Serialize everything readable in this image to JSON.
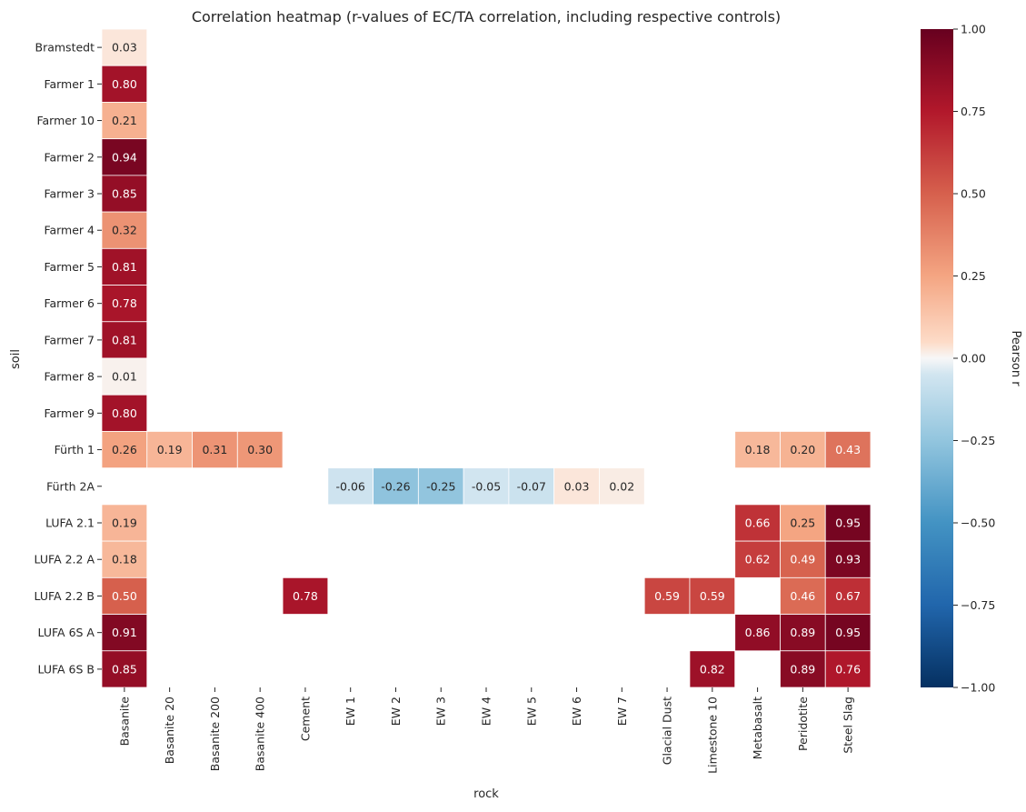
{
  "chart_data": {
    "type": "heatmap",
    "title": "Correlation heatmap (r-values of EC/TA correlation, including respective controls)",
    "xlabel": "rock",
    "ylabel": "soil",
    "colorbar_label": "Pearson r",
    "colormap": "RdBu_r",
    "vlim": [
      -1.0,
      1.0
    ],
    "colorbar_ticks": [
      "1.00",
      "0.75",
      "0.50",
      "0.25",
      "0.00",
      "−0.25",
      "−0.50",
      "−0.75",
      "−1.00"
    ],
    "colorbar_tick_values": [
      1.0,
      0.75,
      0.5,
      0.25,
      0.0,
      -0.25,
      -0.5,
      -0.75,
      -1.0
    ],
    "columns": [
      "Basanite",
      "Basanite 20",
      "Basanite 200",
      "Basanite 400",
      "Cement",
      "EW 1",
      "EW 2",
      "EW 3",
      "EW 4",
      "EW 5",
      "EW 6",
      "EW 7",
      "Glacial Dust",
      "Limestone 10",
      "Metabasalt",
      "Peridotite",
      "Steel Slag"
    ],
    "rows": [
      "Bramstedt",
      "Farmer 1",
      "Farmer 10",
      "Farmer 2",
      "Farmer 3",
      "Farmer 4",
      "Farmer 5",
      "Farmer 6",
      "Farmer 7",
      "Farmer 8",
      "Farmer 9",
      "Fürth 1",
      "Fürth 2A",
      "LUFA 2.1",
      "LUFA 2.2 A",
      "LUFA 2.2 B",
      "LUFA 6S A",
      "LUFA 6S B"
    ],
    "values": [
      [
        0.03,
        null,
        null,
        null,
        null,
        null,
        null,
        null,
        null,
        null,
        null,
        null,
        null,
        null,
        null,
        null,
        null
      ],
      [
        0.8,
        null,
        null,
        null,
        null,
        null,
        null,
        null,
        null,
        null,
        null,
        null,
        null,
        null,
        null,
        null,
        null
      ],
      [
        0.21,
        null,
        null,
        null,
        null,
        null,
        null,
        null,
        null,
        null,
        null,
        null,
        null,
        null,
        null,
        null,
        null
      ],
      [
        0.94,
        null,
        null,
        null,
        null,
        null,
        null,
        null,
        null,
        null,
        null,
        null,
        null,
        null,
        null,
        null,
        null
      ],
      [
        0.85,
        null,
        null,
        null,
        null,
        null,
        null,
        null,
        null,
        null,
        null,
        null,
        null,
        null,
        null,
        null,
        null
      ],
      [
        0.32,
        null,
        null,
        null,
        null,
        null,
        null,
        null,
        null,
        null,
        null,
        null,
        null,
        null,
        null,
        null,
        null
      ],
      [
        0.81,
        null,
        null,
        null,
        null,
        null,
        null,
        null,
        null,
        null,
        null,
        null,
        null,
        null,
        null,
        null,
        null
      ],
      [
        0.78,
        null,
        null,
        null,
        null,
        null,
        null,
        null,
        null,
        null,
        null,
        null,
        null,
        null,
        null,
        null,
        null
      ],
      [
        0.81,
        null,
        null,
        null,
        null,
        null,
        null,
        null,
        null,
        null,
        null,
        null,
        null,
        null,
        null,
        null,
        null
      ],
      [
        0.01,
        null,
        null,
        null,
        null,
        null,
        null,
        null,
        null,
        null,
        null,
        null,
        null,
        null,
        null,
        null,
        null
      ],
      [
        0.8,
        null,
        null,
        null,
        null,
        null,
        null,
        null,
        null,
        null,
        null,
        null,
        null,
        null,
        null,
        null,
        null
      ],
      [
        0.26,
        0.19,
        0.31,
        0.3,
        null,
        null,
        null,
        null,
        null,
        null,
        null,
        null,
        null,
        null,
        0.18,
        0.2,
        0.43
      ],
      [
        null,
        null,
        null,
        null,
        null,
        -0.06,
        -0.26,
        -0.25,
        -0.05,
        -0.07,
        0.03,
        0.02,
        null,
        null,
        null,
        null,
        null
      ],
      [
        0.19,
        null,
        null,
        null,
        null,
        null,
        null,
        null,
        null,
        null,
        null,
        null,
        null,
        null,
        0.66,
        0.25,
        0.95
      ],
      [
        0.18,
        null,
        null,
        null,
        null,
        null,
        null,
        null,
        null,
        null,
        null,
        null,
        null,
        null,
        0.62,
        0.49,
        0.93
      ],
      [
        0.5,
        null,
        null,
        null,
        0.78,
        null,
        null,
        null,
        null,
        null,
        null,
        null,
        0.59,
        0.59,
        null,
        0.46,
        0.67
      ],
      [
        0.91,
        null,
        null,
        null,
        null,
        null,
        null,
        null,
        null,
        null,
        null,
        null,
        null,
        null,
        0.86,
        0.89,
        0.95
      ],
      [
        0.85,
        null,
        null,
        null,
        null,
        null,
        null,
        null,
        null,
        null,
        null,
        null,
        null,
        0.82,
        null,
        0.89,
        0.76
      ]
    ]
  }
}
